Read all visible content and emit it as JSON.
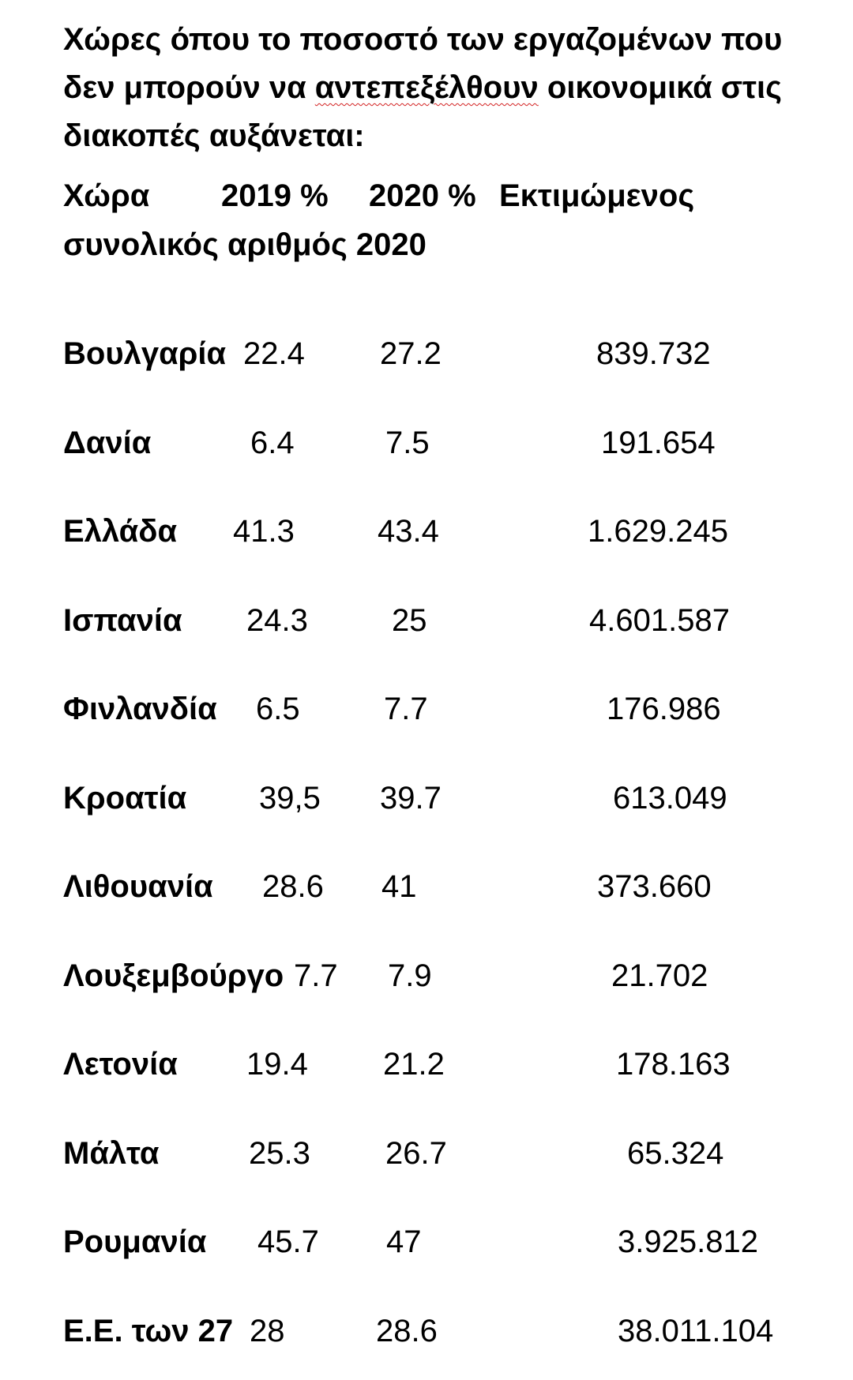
{
  "title": {
    "part1": "Χώρες όπου το ποσοστό των εργαζομένων που δεν μπορούν να ",
    "misspelled": "αντεπεξέλθουν",
    "part2": " οικονομικά στις διακοπές αυξάνεται:"
  },
  "table": {
    "headers": {
      "country": "Χώρα",
      "y2019": "2019 %",
      "y2020": "2020 %",
      "total_line1": "Εκτιμώμενος",
      "total_line2": "συνολικός αριθμός 2020"
    },
    "rows": [
      {
        "country": "Βουλγαρία",
        "y2019": "22.4",
        "y2020": "27.2",
        "total": "839.732"
      },
      {
        "country": "Δανία",
        "y2019": "6.4",
        "y2020": "7.5",
        "total": "191.654"
      },
      {
        "country": "Ελλάδα",
        "y2019": "41.3",
        "y2020": "43.4",
        "total": "1.629.245"
      },
      {
        "country": "Ισπανία",
        "y2019": "24.3",
        "y2020": "25",
        "total": "4.601.587"
      },
      {
        "country": "Φινλανδία",
        "y2019": "6.5",
        "y2020": "7.7",
        "total": "176.986"
      },
      {
        "country": "Κροατία",
        "y2019": "39,5",
        "y2020": "39.7",
        "total": "613.049"
      },
      {
        "country": "Λιθουανία",
        "y2019": "28.6",
        "y2020": "41",
        "total": "373.660"
      },
      {
        "country": "Λουξεμβούργο",
        "y2019": "7.7",
        "y2020": "7.9",
        "total": "21.702"
      },
      {
        "country": "Λετονία",
        "y2019": "19.4",
        "y2020": "21.2",
        "total": "178.163"
      },
      {
        "country": "Μάλτα",
        "y2019": "25.3",
        "y2020": "26.7",
        "total": "65.324"
      },
      {
        "country": "Ρουμανία",
        "y2019": "45.7",
        "y2020": "47",
        "total": "3.925.812"
      },
      {
        "country": "Ε.Ε. των 27",
        "y2019": "28",
        "y2020": "28.6",
        "total": "38.011.104"
      }
    ]
  }
}
